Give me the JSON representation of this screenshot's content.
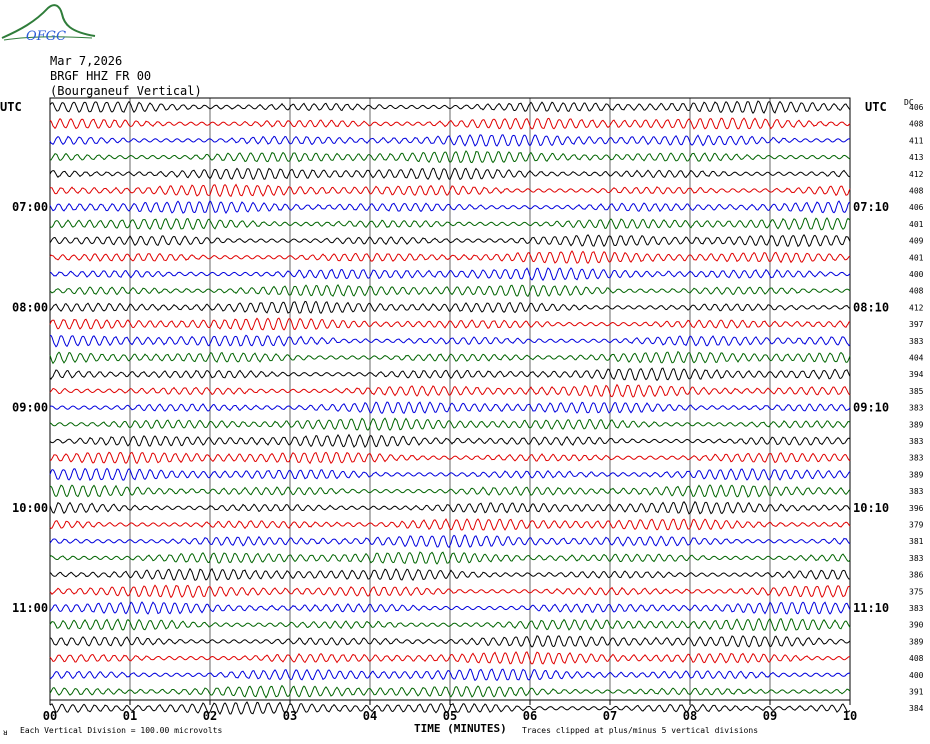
{
  "logo": {
    "text": "OFGC",
    "swoosh_color": "#2f7d3a",
    "text_color": "#2a5bd7"
  },
  "header": {
    "date": "Mar 7,2026",
    "station": "BRGF HHZ FR 00",
    "location": "(Bourganeuf Vertical)"
  },
  "utc_left": "UTC",
  "utc_right": "UTC",
  "dc_label": "DC",
  "footer": {
    "division": "Each Vertical Division =  100.00 microvolts",
    "xlabel": "TIME (MINUTES)",
    "clip_note": "Traces clipped at plus/minus 5 vertical divisions",
    "corner_mark": "ᴚ"
  },
  "chart_data": {
    "type": "line",
    "xlabel": "TIME (MINUTES)",
    "xlim": [
      0,
      10
    ],
    "x_ticks": [
      "00",
      "01",
      "02",
      "03",
      "04",
      "05",
      "06",
      "07",
      "08",
      "09",
      "10"
    ],
    "series_colors": [
      "#000000",
      "#e00000",
      "#0000dd",
      "#006400"
    ],
    "left_hour_labels": [
      {
        "row": 6,
        "label": "07:00"
      },
      {
        "row": 12,
        "label": "08:00"
      },
      {
        "row": 18,
        "label": "09:00"
      },
      {
        "row": 24,
        "label": "10:00"
      },
      {
        "row": 30,
        "label": "11:00"
      }
    ],
    "right_hour_labels": [
      {
        "row": 6,
        "label": "07:10"
      },
      {
        "row": 12,
        "label": "08:10"
      },
      {
        "row": 18,
        "label": "09:10"
      },
      {
        "row": 24,
        "label": "10:10"
      },
      {
        "row": 30,
        "label": "11:10"
      }
    ],
    "dc_offsets": [
      406,
      408,
      411,
      413,
      412,
      408,
      406,
      401,
      409,
      401,
      400,
      408,
      412,
      397,
      383,
      404,
      394,
      385,
      383,
      389,
      383,
      383,
      389,
      383,
      396,
      379,
      381,
      383,
      386,
      375,
      383,
      390,
      389,
      408,
      400,
      391,
      384
    ]
  }
}
